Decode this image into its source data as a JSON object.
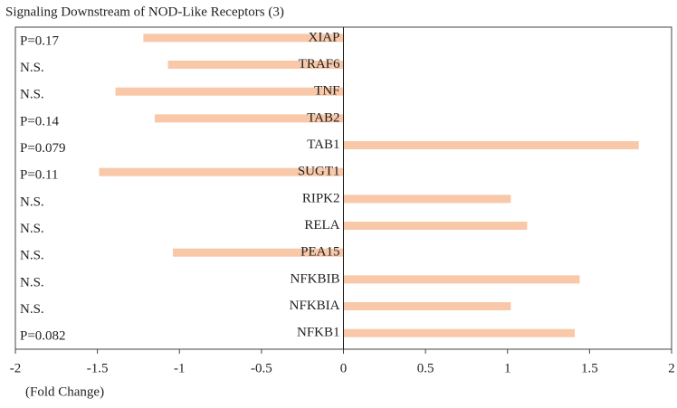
{
  "chart_data": {
    "type": "hbar",
    "title": "Signaling Downstream of NOD-Like Receptors (3)",
    "x_label": "(Fold Change)",
    "categories": [
      "XIAP",
      "TRAF6",
      "TNF",
      "TAB2",
      "TAB1",
      "SUGT1",
      "RIPK2",
      "RELA",
      "PEA15",
      "NFKBIB",
      "NFKBIA",
      "NFKB1"
    ],
    "values": [
      -1.22,
      -1.07,
      -1.39,
      -1.15,
      1.8,
      -1.49,
      1.02,
      1.12,
      -1.04,
      1.44,
      1.02,
      1.41
    ],
    "annotations": [
      "P=0.17",
      "N.S.",
      "N.S.",
      "P=0.14",
      "P=0.079",
      "P=0.11",
      "N.S.",
      "N.S.",
      "N.S.",
      "N.S.",
      "N.S.",
      "P=0.082"
    ],
    "color": "#f8c8a8",
    "xlim": [
      -2,
      2
    ],
    "xticks": [
      -2,
      -1.5,
      -1,
      -0.5,
      0,
      0.5,
      1,
      1.5,
      2
    ]
  }
}
